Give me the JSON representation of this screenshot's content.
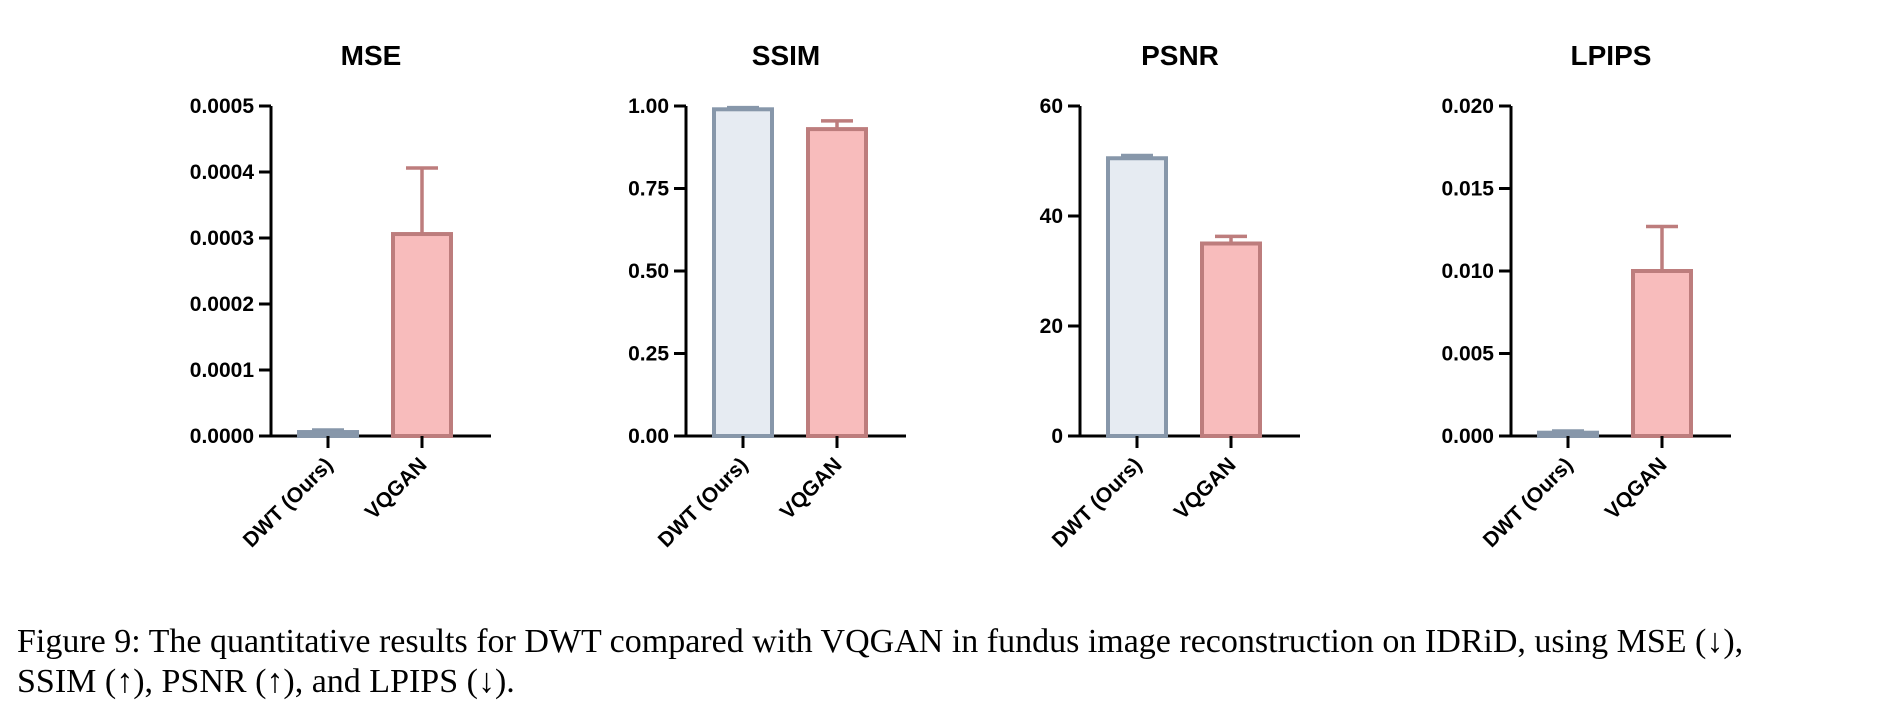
{
  "caption": {
    "line1": "Figure 9: The quantitative results for DWT compared with VQGAN in fundus image reconstruction on IDRiD, using MSE (↓),",
    "line2": "SSIM (↑), PSNR (↑), and LPIPS (↓)."
  },
  "colors": {
    "dwt_fill": "#e6ebf2",
    "dwt_stroke": "#8797aa",
    "vqgan_fill": "#f8bcbc",
    "vqgan_stroke": "#bd7d7d"
  },
  "chart_data": [
    {
      "type": "bar",
      "title": "MSE",
      "categories": [
        "DWT (Ours)",
        "VQGAN"
      ],
      "values": [
        6e-06,
        0.000306
      ],
      "errors": [
        3e-06,
        0.0001
      ],
      "ylim": [
        0,
        0.0005
      ],
      "ticks": [
        "0.0000",
        "0.0001",
        "0.0002",
        "0.0003",
        "0.0004",
        "0.0005"
      ]
    },
    {
      "type": "bar",
      "title": "SSIM",
      "categories": [
        "DWT (Ours)",
        "VQGAN"
      ],
      "values": [
        0.99,
        0.93
      ],
      "errors": [
        0.005,
        0.025
      ],
      "ylim": [
        0,
        1.0
      ],
      "ticks": [
        "0.00",
        "0.25",
        "0.50",
        "0.75",
        "1.00"
      ]
    },
    {
      "type": "bar",
      "title": "PSNR",
      "categories": [
        "DWT (Ours)",
        "VQGAN"
      ],
      "values": [
        50.5,
        35.0
      ],
      "errors": [
        0.5,
        1.3
      ],
      "ylim": [
        0,
        60
      ],
      "ticks": [
        "0",
        "20",
        "40",
        "60"
      ]
    },
    {
      "type": "bar",
      "title": "LPIPS",
      "categories": [
        "DWT (Ours)",
        "VQGAN"
      ],
      "values": [
        0.0002,
        0.01
      ],
      "errors": [
        0.0001,
        0.0027
      ],
      "ylim": [
        0,
        0.02
      ],
      "ticks": [
        "0.000",
        "0.005",
        "0.010",
        "0.015",
        "0.020"
      ]
    }
  ]
}
